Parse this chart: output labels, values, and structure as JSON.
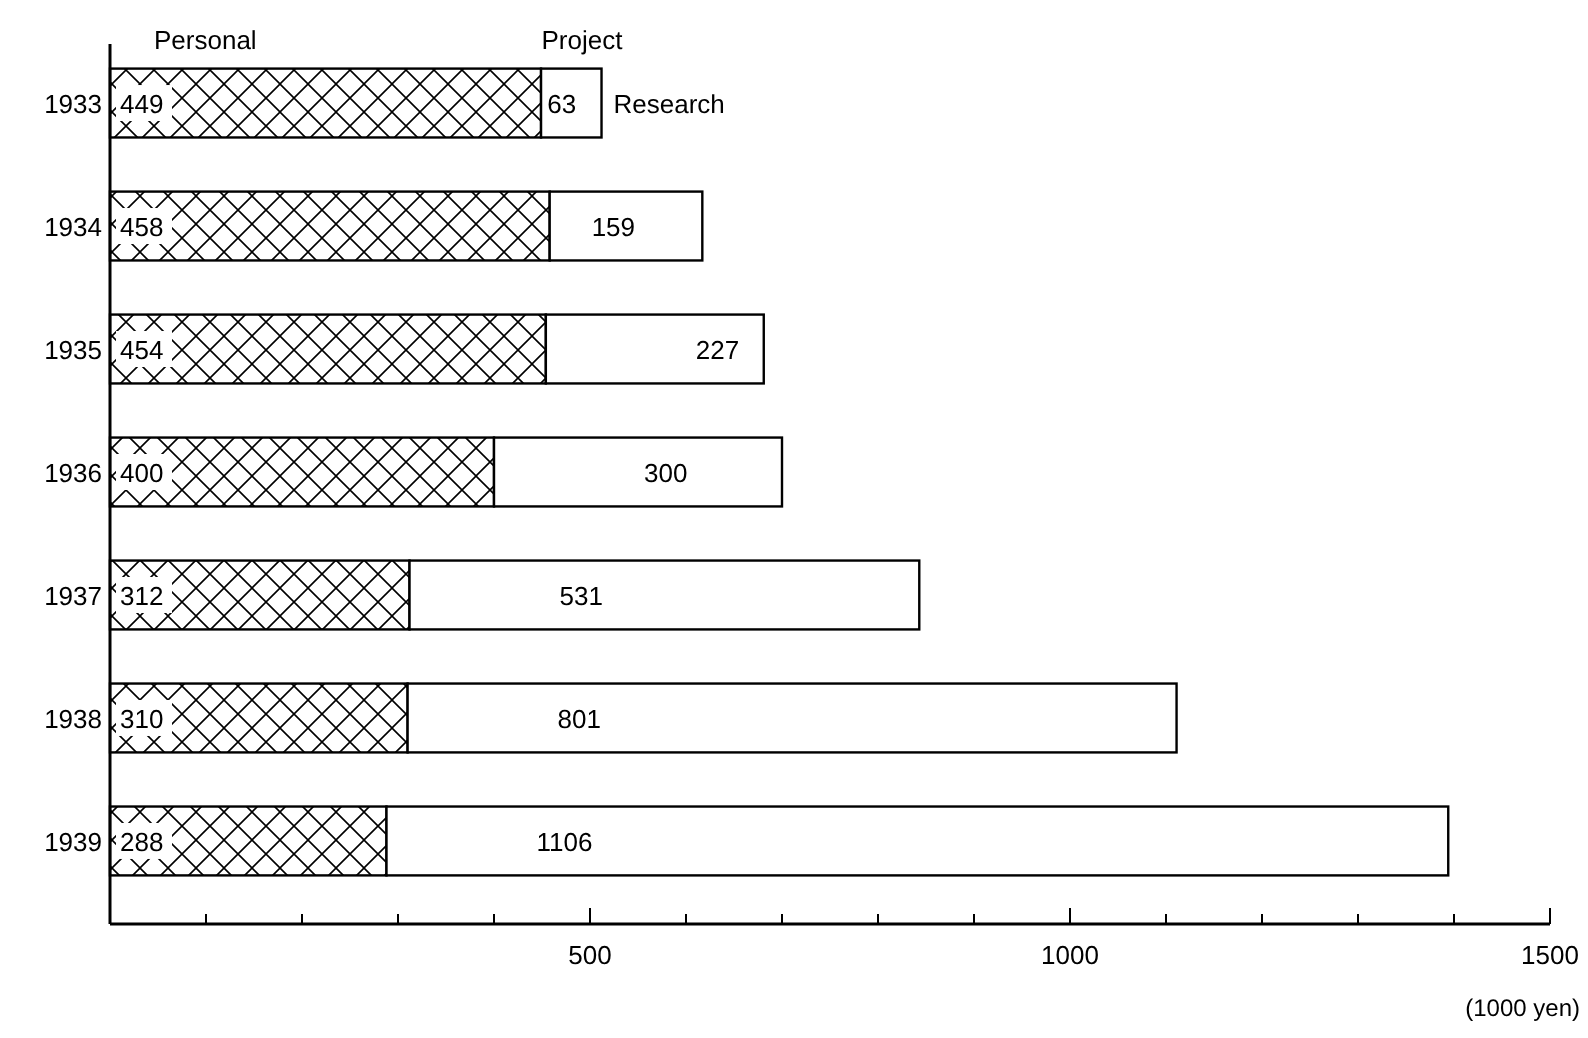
{
  "chart_data": {
    "type": "bar",
    "orientation": "horizontal",
    "stacked": true,
    "data_labels": true,
    "grid": false,
    "categories": [
      "1933",
      "1934",
      "1935",
      "1936",
      "1937",
      "1938",
      "1939"
    ],
    "series": [
      {
        "name": "Personal",
        "color": "#000000",
        "values": [
          449,
          458,
          454,
          400,
          312,
          310,
          288
        ]
      },
      {
        "name": "Project Research",
        "color": "#ffffff",
        "values": [
          63,
          159,
          227,
          300,
          531,
          801,
          1106
        ]
      }
    ],
    "xlim": [
      0,
      1500
    ],
    "xticks": [
      {
        "value": 0,
        "label": null
      },
      {
        "value": 100,
        "label": null
      },
      {
        "value": 200,
        "label": null
      },
      {
        "value": 300,
        "label": null
      },
      {
        "value": 400,
        "label": null
      },
      500,
      {
        "value": 600,
        "label": null
      },
      {
        "value": 700,
        "label": null
      },
      {
        "value": 800,
        "label": null
      },
      {
        "value": 900,
        "label": null
      },
      1000,
      {
        "value": 1100,
        "label": null
      },
      {
        "value": 1200,
        "label": null
      },
      {
        "value": 1300,
        "label": null
      },
      {
        "value": 1400,
        "label": null
      },
      1500
    ],
    "xlabel": "(1000 yen)"
  }
}
